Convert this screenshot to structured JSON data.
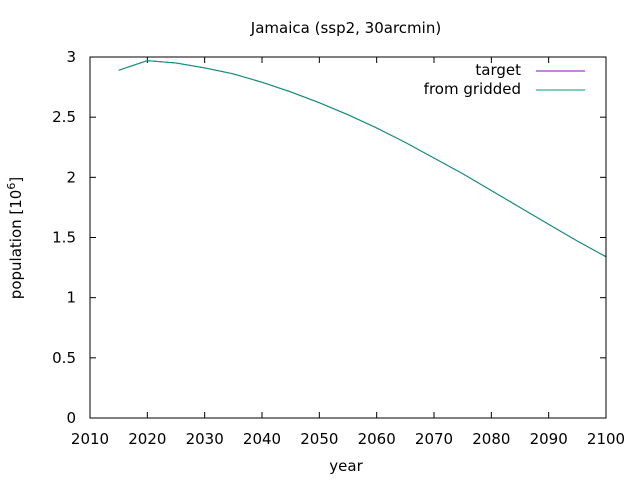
{
  "chart_data": {
    "type": "line",
    "title": "Jamaica (ssp2, 30arcmin)",
    "xlabel": "year",
    "ylabel": "population [10",
    "ylabel_sup": "6",
    "ylabel_suffix": "]",
    "xlim": [
      2010,
      2100
    ],
    "ylim": [
      0,
      3
    ],
    "xticks": [
      2010,
      2020,
      2030,
      2040,
      2050,
      2060,
      2070,
      2080,
      2090,
      2100
    ],
    "yticks": [
      0,
      0.5,
      1,
      1.5,
      2,
      2.5,
      3
    ],
    "ytick_labels": [
      "0",
      "0.5",
      "1",
      "1.5",
      "2",
      "2.5",
      "3"
    ],
    "grid": false,
    "legend_position": "top-right",
    "x": [
      2015,
      2020,
      2025,
      2030,
      2035,
      2040,
      2045,
      2050,
      2055,
      2060,
      2065,
      2070,
      2075,
      2080,
      2085,
      2090,
      2095,
      2100
    ],
    "series": [
      {
        "name": "target",
        "color": "#9400d3",
        "values": [
          2.89,
          2.97,
          2.95,
          2.91,
          2.86,
          2.79,
          2.71,
          2.62,
          2.52,
          2.41,
          2.29,
          2.16,
          2.03,
          1.89,
          1.75,
          1.61,
          1.47,
          1.34
        ]
      },
      {
        "name": "from gridded",
        "color": "#009e73",
        "values": [
          2.89,
          2.97,
          2.95,
          2.91,
          2.86,
          2.79,
          2.71,
          2.62,
          2.52,
          2.41,
          2.29,
          2.16,
          2.03,
          1.89,
          1.75,
          1.61,
          1.47,
          1.34
        ]
      }
    ]
  }
}
